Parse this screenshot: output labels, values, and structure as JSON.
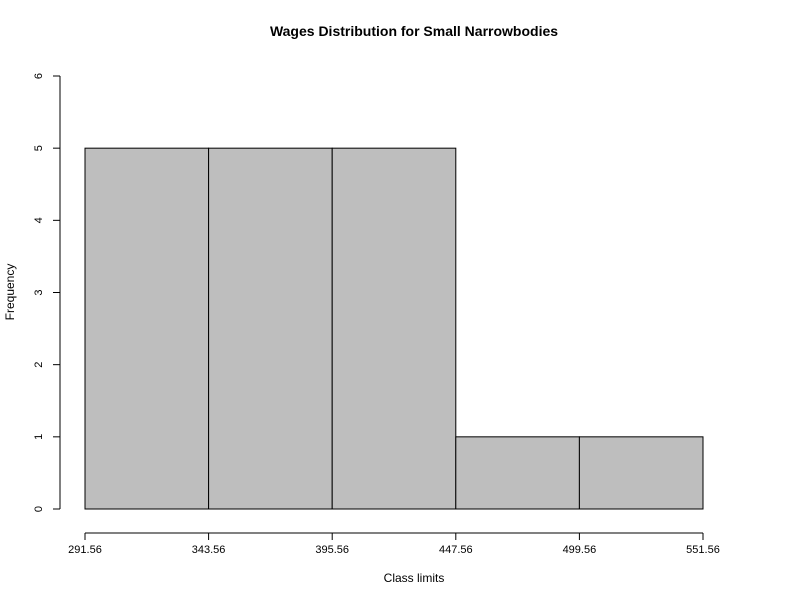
{
  "chart_data": {
    "type": "bar",
    "title": "Wages Distribution for Small Narrowbodies",
    "xlabel": "Class limits",
    "ylabel": "Frequency",
    "bin_edges": [
      291.56,
      343.56,
      395.56,
      447.56,
      499.56,
      551.56
    ],
    "x_tick_labels": [
      "291.56",
      "343.56",
      "395.56",
      "447.56",
      "499.56",
      "551.56"
    ],
    "values": [
      5,
      5,
      5,
      1,
      1
    ],
    "y_ticks": [
      0,
      1,
      2,
      3,
      4,
      5,
      6
    ],
    "y_tick_labels": [
      "0",
      "1",
      "2",
      "3",
      "4",
      "5",
      "6"
    ],
    "ylim": [
      0,
      6
    ],
    "xlim": [
      291.56,
      551.56
    ],
    "bar_color": "#bebebe",
    "grid": false,
    "legend": false
  }
}
